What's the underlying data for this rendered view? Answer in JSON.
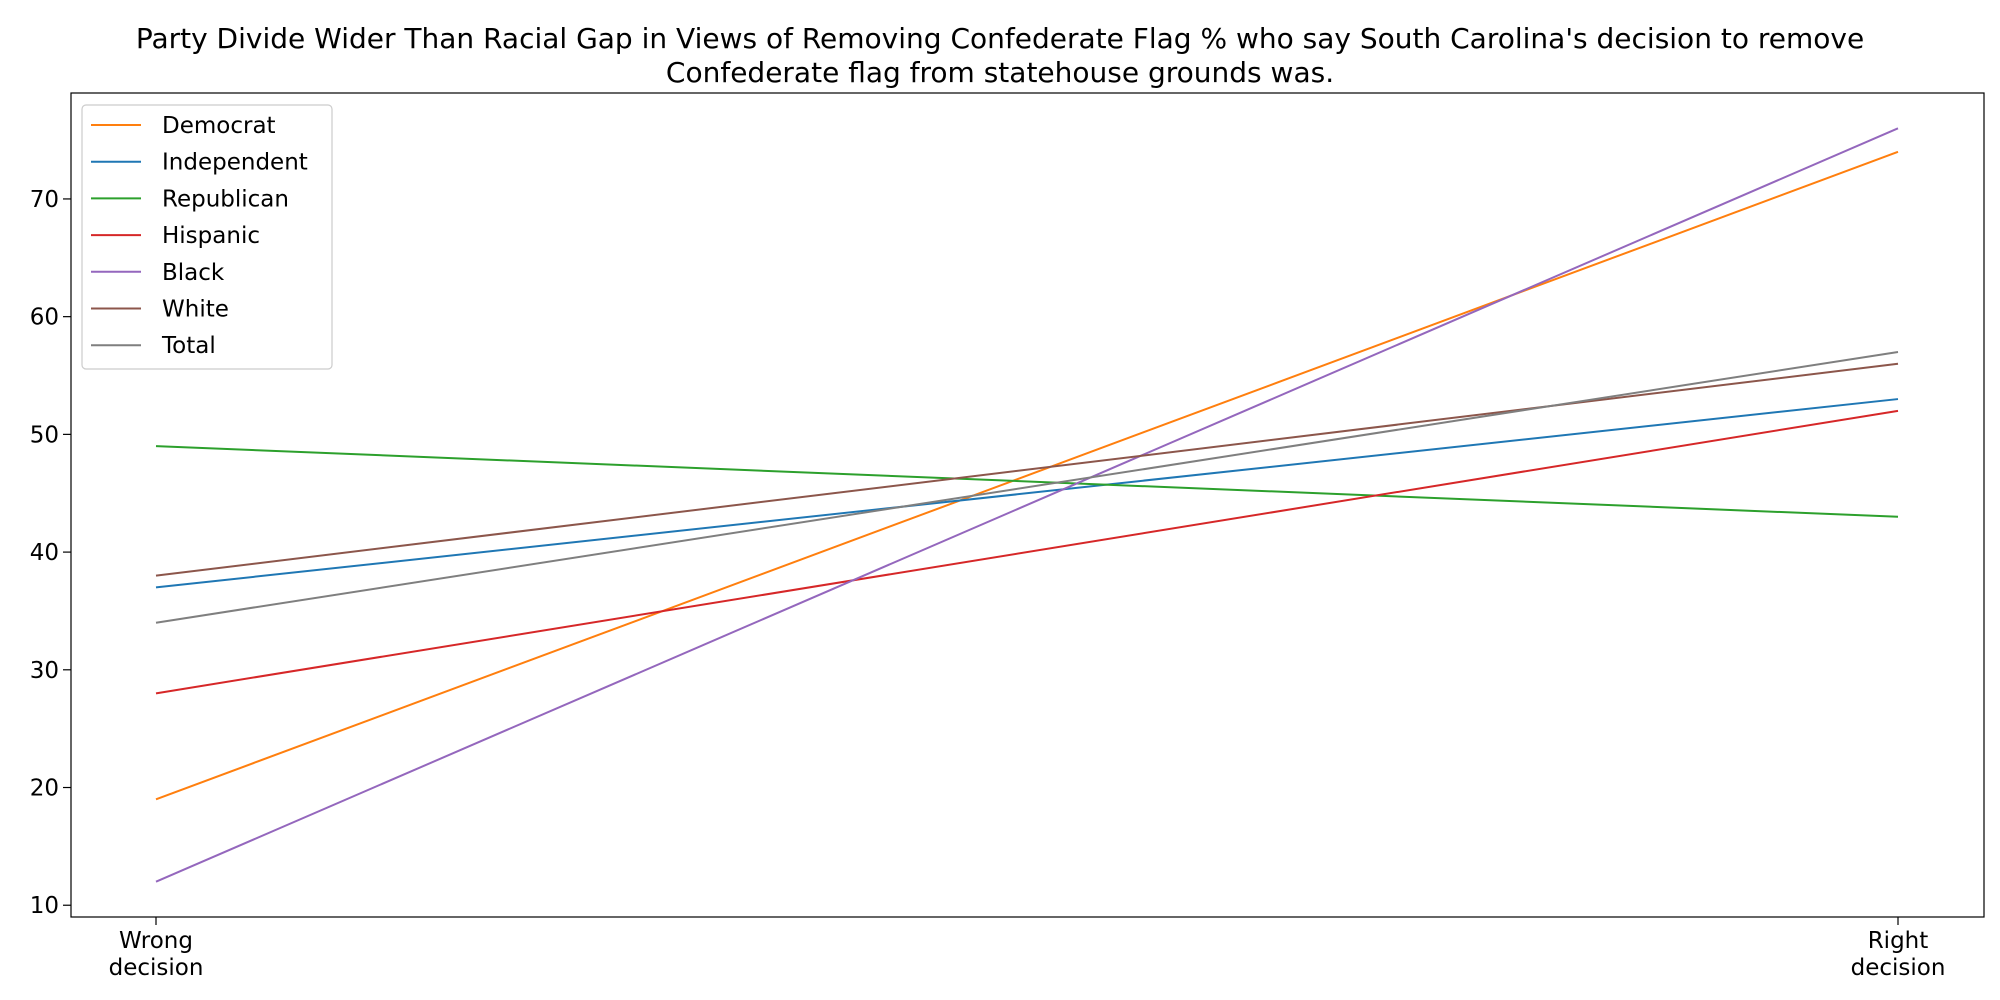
{
  "chart_data": {
    "type": "line",
    "title_lines": [
      "Party Divide Wider Than Racial Gap in Views of Removing Confederate Flag % who say South Carolina's decision to remove",
      "Confederate flag from statehouse grounds was."
    ],
    "xlabel": "",
    "ylabel": "",
    "x_categories": [
      [
        "Wrong",
        "decision"
      ],
      [
        "Right",
        "decision"
      ]
    ],
    "ylim": [
      9,
      79
    ],
    "yticks": [
      10,
      20,
      30,
      40,
      50,
      60,
      70
    ],
    "grid": false,
    "legend_position": "top-left",
    "series": [
      {
        "name": "Democrat",
        "color": "#ff7f0e",
        "values": [
          19,
          74
        ]
      },
      {
        "name": "Independent",
        "color": "#1f77b4",
        "values": [
          37,
          53
        ]
      },
      {
        "name": "Republican",
        "color": "#2ca02c",
        "values": [
          49,
          43
        ]
      },
      {
        "name": "Hispanic",
        "color": "#d62728",
        "values": [
          28,
          52
        ]
      },
      {
        "name": "Black",
        "color": "#9467bd",
        "values": [
          12,
          76
        ]
      },
      {
        "name": "White",
        "color": "#8c564b",
        "values": [
          38,
          56
        ]
      },
      {
        "name": "Total",
        "color": "#7f7f7f",
        "values": [
          34,
          57
        ]
      }
    ]
  }
}
